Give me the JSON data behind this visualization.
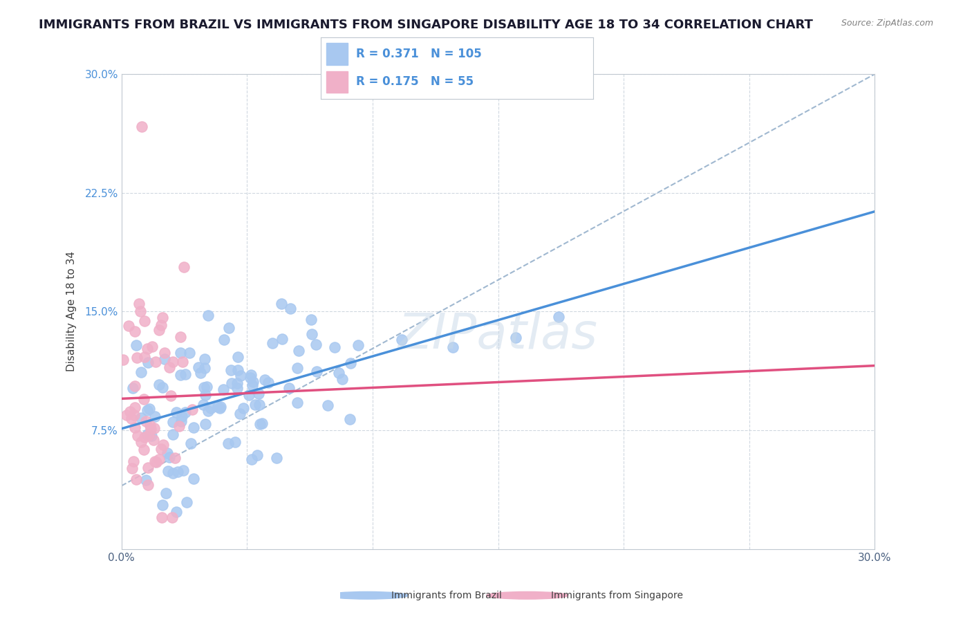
{
  "title": "IMMIGRANTS FROM BRAZIL VS IMMIGRANTS FROM SINGAPORE DISABILITY AGE 18 TO 34 CORRELATION CHART",
  "source": "Source: ZipAtlas.com",
  "xlabel": "",
  "ylabel": "Disability Age 18 to 34",
  "xlim": [
    0.0,
    0.3
  ],
  "ylim": [
    0.0,
    0.3
  ],
  "xticks": [
    0.0,
    0.05,
    0.1,
    0.15,
    0.2,
    0.25,
    0.3
  ],
  "yticks": [
    0.0,
    0.075,
    0.15,
    0.225,
    0.3
  ],
  "xtick_labels": [
    "0.0%",
    "",
    "",
    "",
    "",
    "",
    "30.0%"
  ],
  "ytick_labels": [
    "",
    "7.5%",
    "15.0%",
    "22.5%",
    "30.0%"
  ],
  "brazil_R": 0.371,
  "brazil_N": 105,
  "singapore_R": 0.175,
  "singapore_N": 55,
  "brazil_color": "#a8c8f0",
  "singapore_color": "#f0a8c0",
  "brazil_line_color": "#4a90d9",
  "singapore_line_color": "#e05080",
  "brazil_scatter_color": "#a8c8f0",
  "singapore_scatter_color": "#f0b0c8",
  "legend_box_color": "#e8f0f8",
  "watermark": "ZIPatlas",
  "watermark_color": "#c8d8e8",
  "brazil_seed": 42,
  "singapore_seed": 99,
  "background_color": "#ffffff",
  "grid_color": "#d0d8e0",
  "title_fontsize": 13,
  "axis_label_fontsize": 11,
  "tick_fontsize": 11
}
